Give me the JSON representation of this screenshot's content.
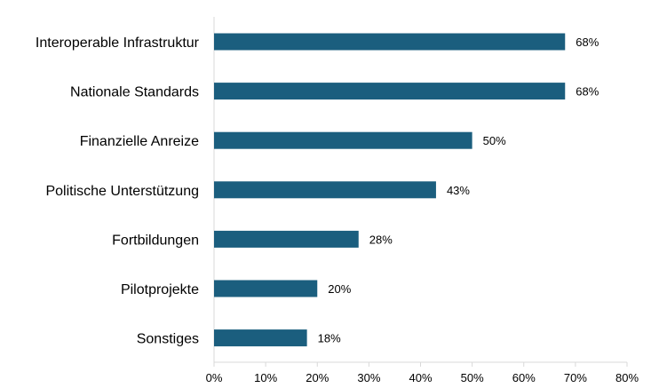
{
  "chart_data": {
    "type": "bar",
    "orientation": "horizontal",
    "categories": [
      "Interoperable Infrastruktur",
      "Nationale Standards",
      "Finanzielle Anreize",
      "Politische Unterstützung",
      "Fortbildungen",
      "Pilotprojekte",
      "Sonstiges"
    ],
    "values": [
      68,
      68,
      50,
      43,
      28,
      20,
      18
    ],
    "value_labels": [
      "68%",
      "68%",
      "50%",
      "43%",
      "28%",
      "20%",
      "18%"
    ],
    "xlim": [
      0,
      80
    ],
    "x_ticks": [
      0,
      10,
      20,
      30,
      40,
      50,
      60,
      70,
      80
    ],
    "x_tick_labels": [
      "0%",
      "10%",
      "20%",
      "30%",
      "40%",
      "50%",
      "60%",
      "70%",
      "80%"
    ],
    "grid": false,
    "legend": "none",
    "bar_color": "#1b5e7e",
    "axis_color": "#d9d9d9"
  }
}
